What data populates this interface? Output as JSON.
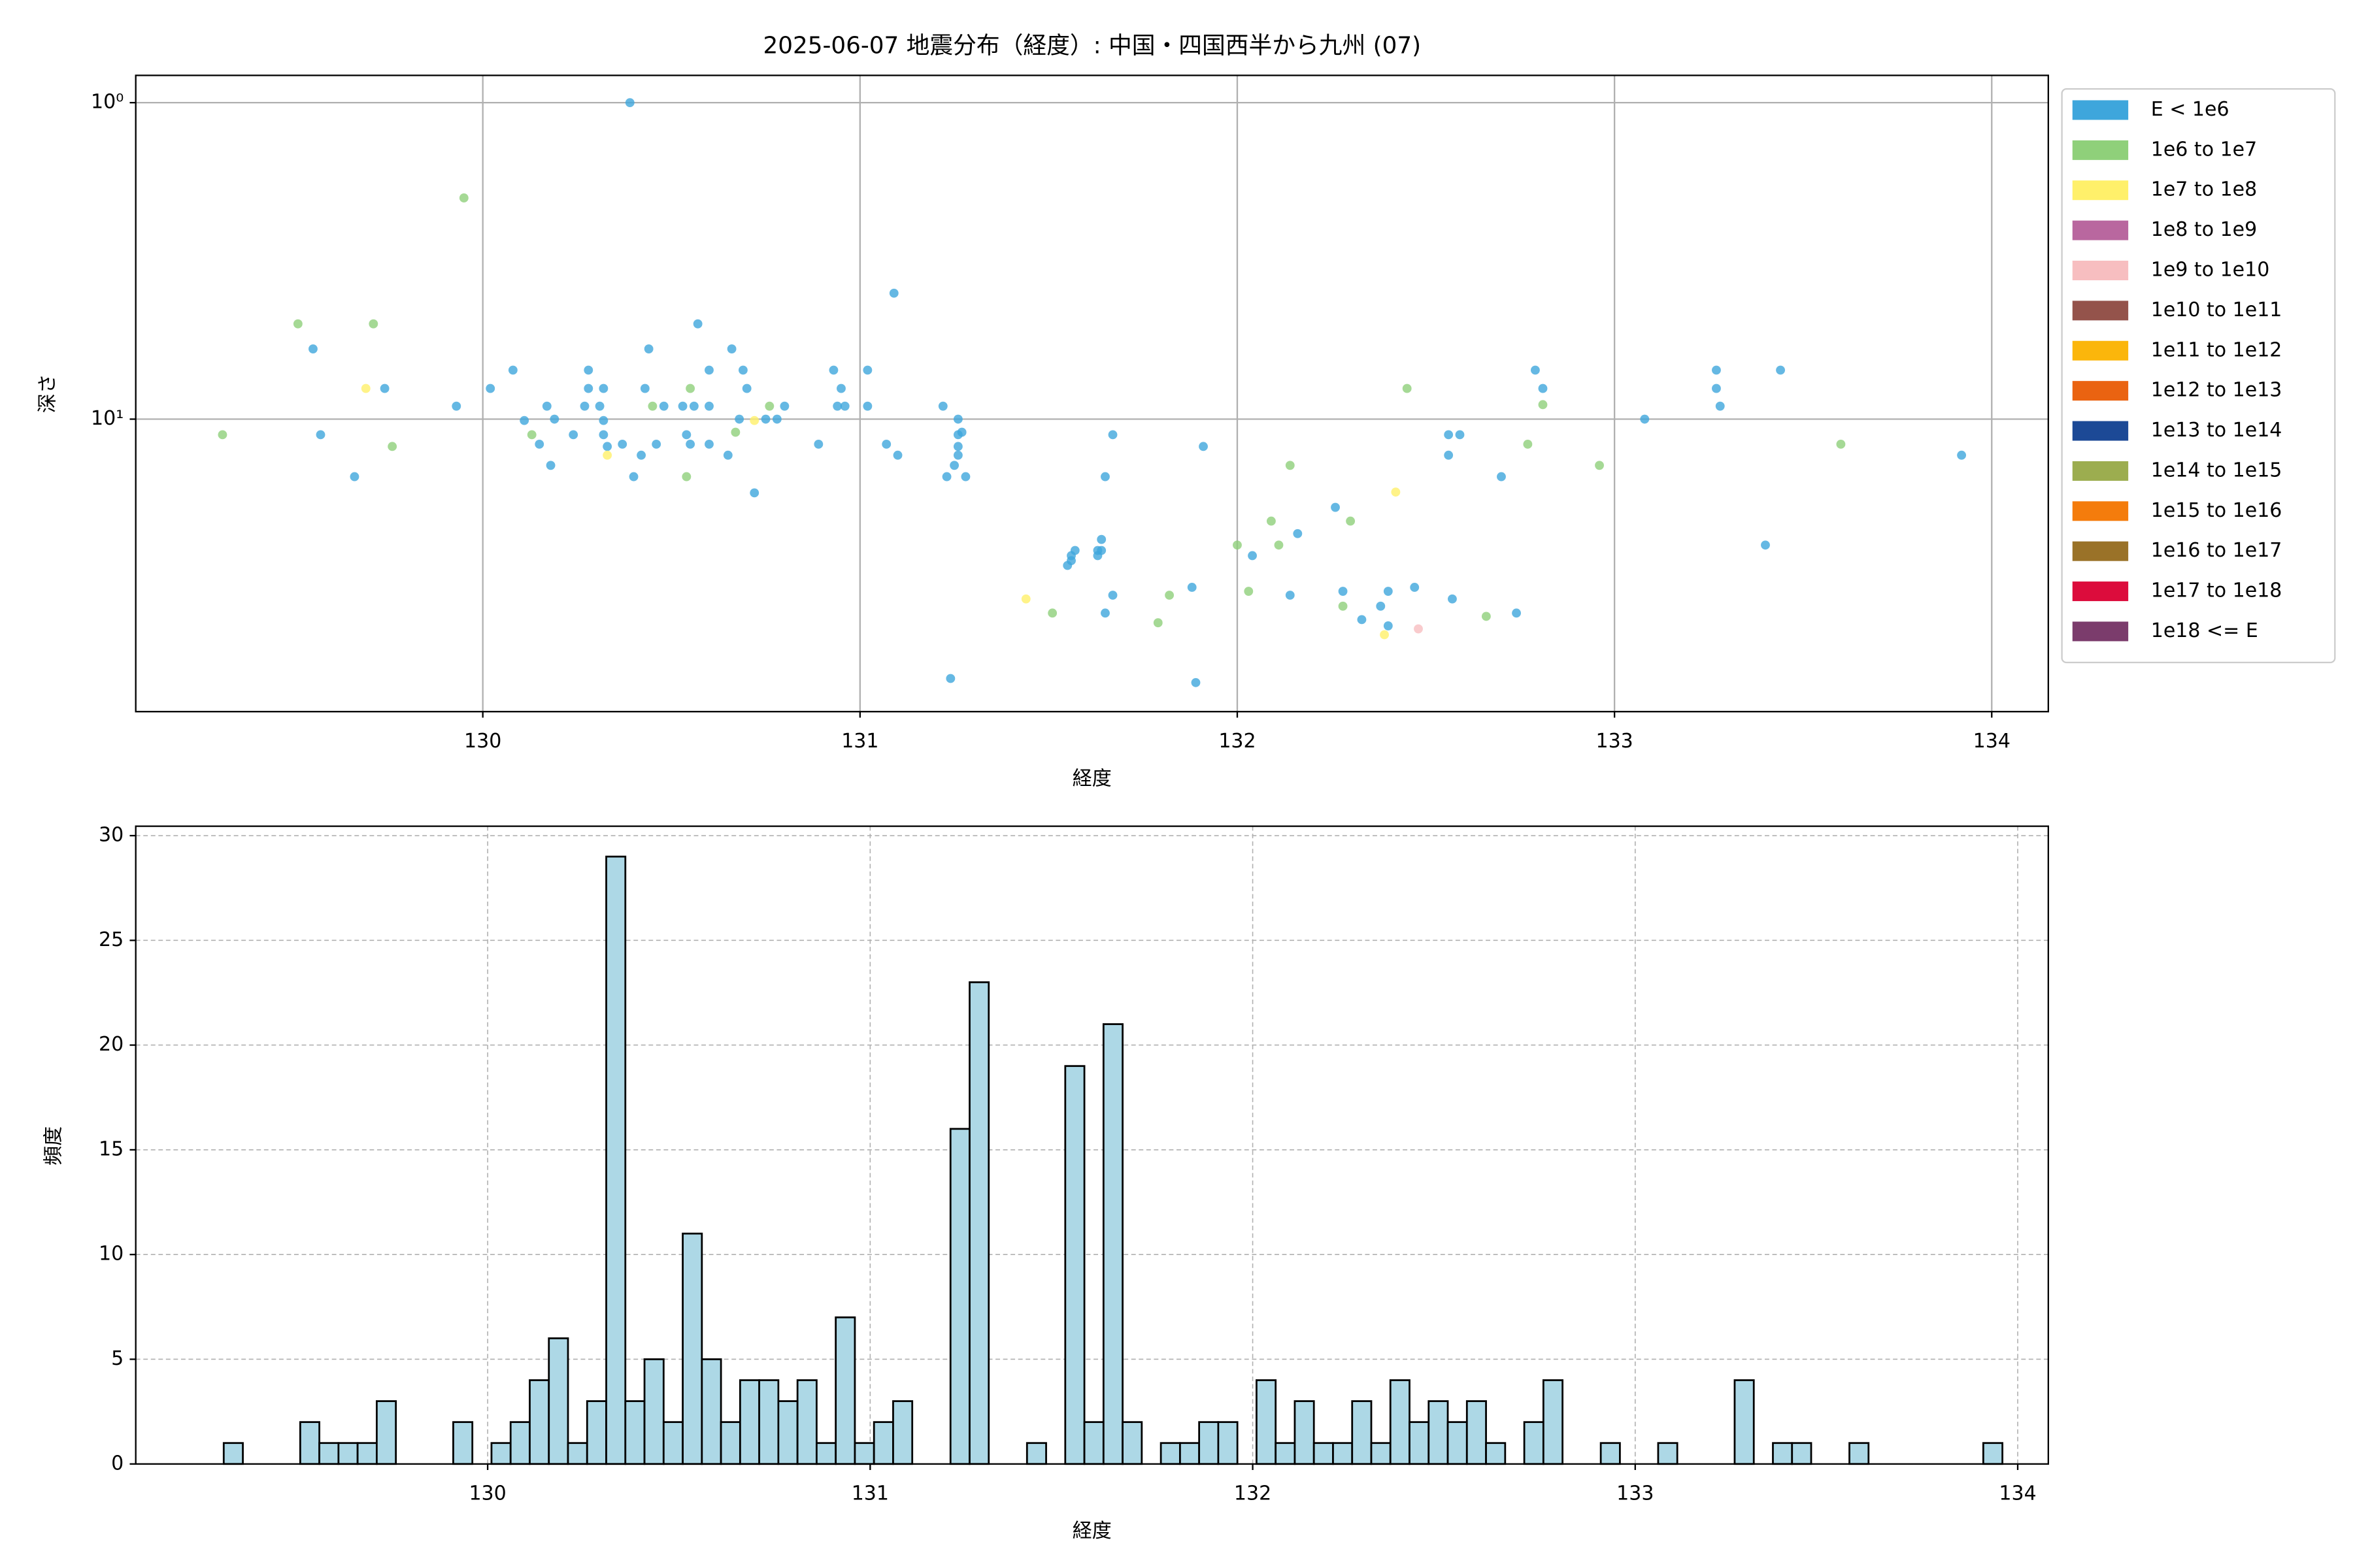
{
  "chart_data": [
    {
      "type": "scatter",
      "title": "2025-06-07 地震分布（経度）: 中国・四国西半から九州 (07)",
      "x_label": "経度",
      "y_label": "深さ",
      "xlim": [
        129.08,
        134.15
      ],
      "xticks": [
        130,
        131,
        132,
        133,
        134
      ],
      "ylim": [
        84,
        0.82
      ],
      "yscale": "log",
      "yticks": [
        {
          "value": 1,
          "label": "10⁰"
        },
        {
          "value": 10,
          "label": "10¹"
        }
      ],
      "grid": true,
      "legend_loc": "outside upper right",
      "series": [
        {
          "name": "E < 1e6",
          "color": "#3ea6dc",
          "x": [
            130.39,
            131.09,
            129.55,
            129.57,
            129.66,
            129.74,
            129.93,
            130.02,
            130.08,
            130.11,
            130.17,
            130.15,
            130.18,
            130.19,
            130.24,
            130.27,
            130.28,
            130.28,
            130.31,
            130.32,
            130.32,
            130.33,
            130.32,
            130.37,
            130.4,
            130.42,
            130.43,
            130.44,
            130.46,
            130.48,
            130.53,
            130.54,
            130.55,
            130.56,
            130.57,
            130.6,
            130.6,
            130.6,
            130.66,
            130.65,
            130.68,
            130.69,
            130.7,
            130.72,
            130.75,
            130.78,
            130.8,
            130.89,
            130.93,
            130.94,
            130.95,
            130.96,
            131.02,
            131.02,
            131.07,
            131.1,
            131.22,
            131.23,
            131.24,
            131.26,
            131.26,
            131.26,
            131.26,
            131.25,
            131.28,
            131.27,
            131.56,
            131.56,
            131.57,
            131.55,
            131.63,
            131.64,
            131.64,
            131.63,
            131.65,
            131.67,
            131.65,
            131.67,
            131.88,
            131.89,
            131.91,
            132.04,
            132.14,
            132.16,
            132.26,
            132.28,
            132.33,
            132.38,
            132.4,
            132.4,
            132.47,
            132.57,
            132.56,
            132.56,
            132.59,
            132.7,
            132.74,
            132.79,
            132.81,
            133.08,
            133.27,
            133.27,
            133.28,
            133.4,
            133.44,
            133.92
          ],
          "y": [
            1.0,
            4.0,
            6.0,
            11.2,
            15.2,
            8.0,
            9.1,
            8.0,
            7.0,
            10.1,
            9.1,
            12.0,
            14.0,
            10.0,
            11.2,
            9.1,
            7.0,
            8.0,
            9.1,
            10.1,
            11.2,
            12.2,
            8.0,
            12.0,
            15.2,
            13.0,
            8.0,
            6.0,
            12.0,
            9.1,
            9.1,
            11.2,
            12.0,
            9.1,
            5.0,
            7.0,
            12.0,
            9.1,
            6.0,
            13.0,
            10.0,
            7.0,
            8.0,
            17.1,
            10.0,
            10.0,
            9.1,
            12.0,
            7.0,
            9.1,
            8.0,
            9.1,
            7.0,
            9.1,
            12.0,
            13.0,
            9.1,
            15.2,
            66,
            10.0,
            11.2,
            12.2,
            13.0,
            14.0,
            15.2,
            11.0,
            28,
            27,
            26,
            29,
            26,
            24,
            26,
            27,
            15.2,
            11.2,
            41,
            36,
            34,
            68,
            12.2,
            27,
            36,
            23,
            19,
            35,
            43,
            39,
            35,
            45,
            34,
            37,
            11.2,
            13.0,
            11.2,
            15.2,
            41,
            7.0,
            8.0,
            10.0,
            7.0,
            8.0,
            9.1,
            25,
            7.0,
            13.0
          ]
        },
        {
          "name": "1e6 to 1e7",
          "color": "#8fd07a",
          "x": [
            129.31,
            129.51,
            129.71,
            129.76,
            129.95,
            130.13,
            130.45,
            130.55,
            130.54,
            130.67,
            130.76,
            132.0,
            132.03,
            132.09,
            132.11,
            132.14,
            132.28,
            132.3,
            132.45,
            132.66,
            132.77,
            132.81,
            132.96,
            133.6,
            131.51,
            131.79,
            131.82
          ],
          "y": [
            11.2,
            5.0,
            5.0,
            12.2,
            2.0,
            11.2,
            9.1,
            8.0,
            15.2,
            11.0,
            9.1,
            25,
            35,
            21,
            25,
            14.0,
            39,
            21,
            8.0,
            42,
            12.0,
            9.0,
            14.0,
            12.0,
            41,
            44,
            36
          ]
        },
        {
          "name": "1e7 to 1e8",
          "color": "#fff06a",
          "x": [
            129.69,
            130.33,
            130.72,
            131.44,
            132.42,
            132.39
          ],
          "y": [
            8.0,
            13.0,
            10.1,
            37,
            17.0,
            48
          ]
        },
        {
          "name": "1e8 to 1e9",
          "color": "#b9679f",
          "x": [],
          "y": []
        },
        {
          "name": "1e9 to 1e10",
          "color": "#f7bec0",
          "x": [
            132.48
          ],
          "y": [
            46
          ]
        },
        {
          "name": "1e10 to 1e11",
          "color": "#94534b",
          "x": [],
          "y": []
        },
        {
          "name": "1e11 to 1e12",
          "color": "#fbb60b",
          "x": [],
          "y": []
        },
        {
          "name": "1e12 to 1e13",
          "color": "#ea6311",
          "x": [],
          "y": []
        },
        {
          "name": "1e13 to 1e14",
          "color": "#1c4996",
          "x": [],
          "y": []
        },
        {
          "name": "1e14 to 1e15",
          "color": "#9cad4f",
          "x": [],
          "y": []
        },
        {
          "name": "1e15 to 1e16",
          "color": "#f47c0c",
          "x": [],
          "y": []
        },
        {
          "name": "1e16 to 1e17",
          "color": "#9a7228",
          "x": [],
          "y": []
        },
        {
          "name": "1e17 to 1e18",
          "color": "#dc0c3c",
          "x": [],
          "y": []
        },
        {
          "name": "1e18 <= E",
          "color": "#7b3c6c",
          "x": [],
          "y": []
        }
      ]
    },
    {
      "type": "histogram",
      "x_label": "経度",
      "y_label": "頻度",
      "color": "#add8e6",
      "edgecolor": "#000000",
      "xlim": [
        129.08,
        134.08
      ],
      "xticks": [
        130,
        131,
        132,
        133,
        134
      ],
      "ylim": [
        0,
        30.45
      ],
      "yticks": [
        0,
        5,
        10,
        15,
        20,
        25,
        30
      ],
      "grid": true,
      "bins": [
        129.31,
        129.36,
        129.41,
        129.46,
        129.51,
        129.56,
        129.61,
        129.66,
        129.71,
        129.76,
        129.81,
        129.86,
        129.91,
        129.96,
        130.01,
        130.06,
        130.11,
        130.16,
        130.21,
        130.26,
        130.31,
        130.36,
        130.41,
        130.46,
        130.51,
        130.56,
        130.61,
        130.66,
        130.71,
        130.76,
        130.81,
        130.86,
        130.91,
        130.96,
        131.01,
        131.06,
        131.11,
        131.16,
        131.21,
        131.26,
        131.31,
        131.36,
        131.41,
        131.46,
        131.51,
        131.56,
        131.61,
        131.66,
        131.71,
        131.76,
        131.81,
        131.86,
        131.91,
        131.96,
        132.01,
        132.06,
        132.11,
        132.16,
        132.21,
        132.26,
        132.31,
        132.36,
        132.41,
        132.46,
        132.51,
        132.56,
        132.61,
        132.66,
        132.71,
        132.76,
        132.81,
        132.86,
        132.91,
        132.96,
        133.01,
        133.06,
        133.11,
        133.16,
        133.21,
        133.26,
        133.31,
        133.36,
        133.41,
        133.46,
        133.51,
        133.56,
        133.61,
        133.66,
        133.71,
        133.76,
        133.81,
        133.86,
        133.91,
        133.96
      ],
      "counts": [
        1,
        0,
        0,
        0,
        2,
        1,
        1,
        1,
        3,
        0,
        0,
        0,
        2,
        0,
        1,
        2,
        4,
        6,
        1,
        3,
        29,
        3,
        5,
        2,
        11,
        5,
        2,
        4,
        4,
        3,
        4,
        1,
        7,
        1,
        2,
        3,
        0,
        0,
        16,
        23,
        0,
        0,
        1,
        0,
        19,
        2,
        21,
        2,
        0,
        1,
        1,
        2,
        2,
        0,
        4,
        1,
        3,
        1,
        1,
        3,
        1,
        4,
        2,
        3,
        2,
        3,
        1,
        0,
        2,
        4,
        0,
        0,
        1,
        0,
        0,
        1,
        0,
        0,
        0,
        4,
        0,
        1,
        1,
        0,
        0,
        1,
        0,
        0,
        0,
        0,
        0,
        0,
        1
      ]
    }
  ]
}
